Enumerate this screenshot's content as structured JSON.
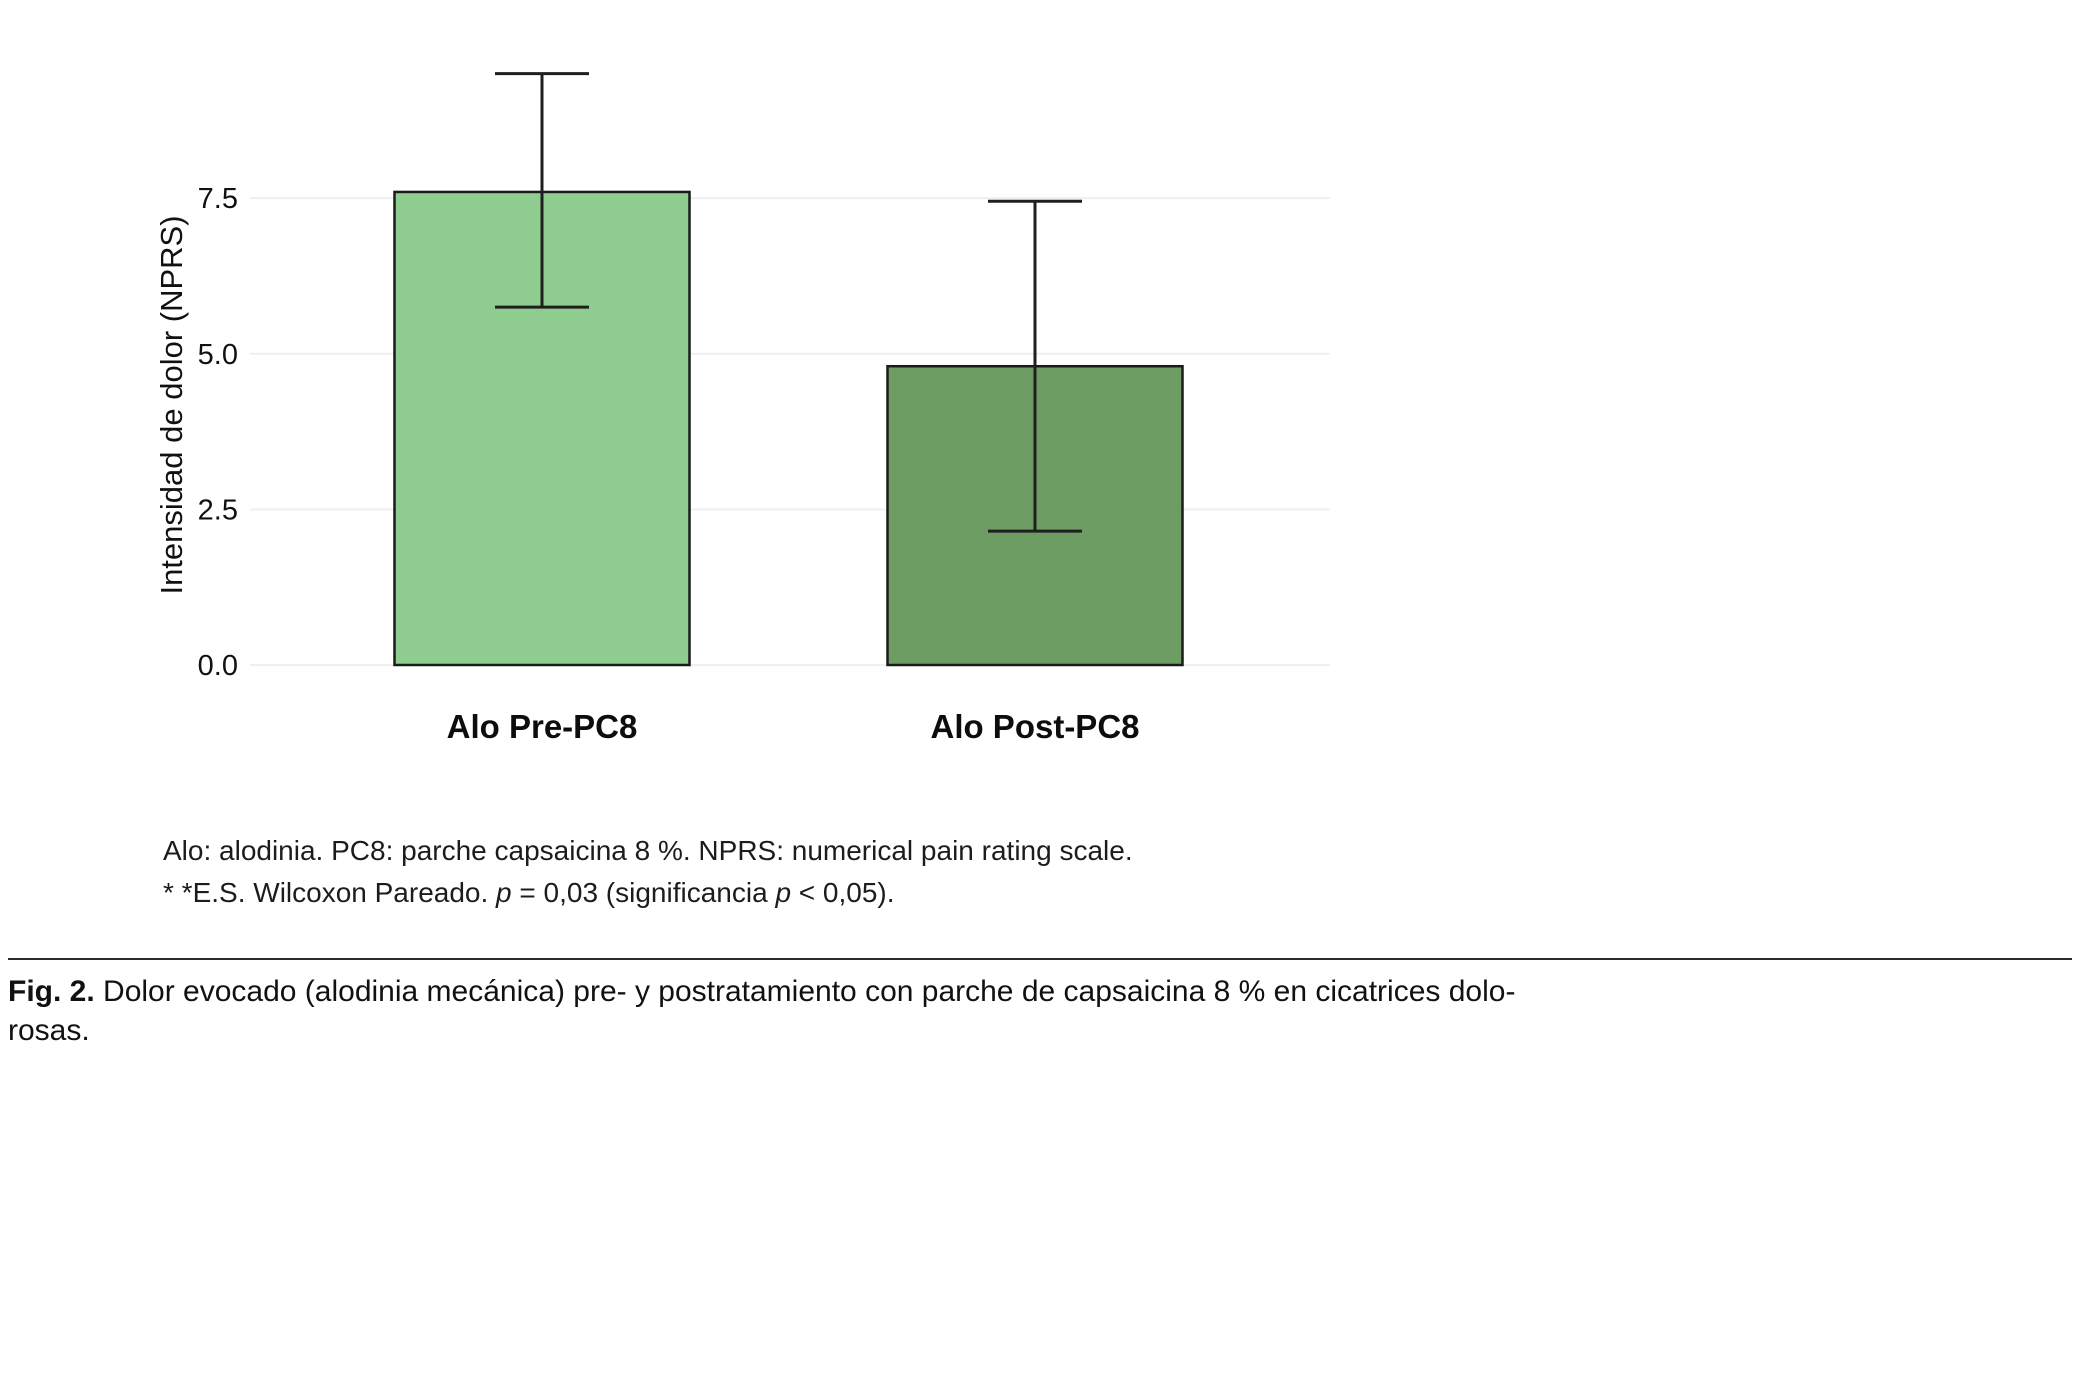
{
  "chart_data": {
    "type": "bar",
    "title": "",
    "categories": [
      "Alo Pre-PC8",
      "Alo Post-PC8"
    ],
    "values": [
      7.6,
      4.8
    ],
    "error_low": [
      5.75,
      2.15
    ],
    "error_high": [
      9.5,
      7.45
    ],
    "bar_colors": [
      "#8ecd8f",
      "#6e9d63"
    ],
    "bar_border_color": "#1a1a1a",
    "error_bar_color": "#1f1f1f",
    "xlabel": "",
    "ylabel": "Intensidad de dolor (NPRS)",
    "ytick_labels": [
      "0.0",
      "2.5",
      "5.0",
      "7.5"
    ],
    "ytick_values": [
      0,
      2.5,
      5,
      7.5
    ],
    "ylim": [
      0,
      9.8
    ],
    "grid": true,
    "grid_color": "#efefef",
    "legend": "none",
    "background": "#ffffff"
  },
  "footnotes": {
    "line1": "Alo: alodinia. PC8: parche capsaicina 8 %. NPRS: numerical pain rating scale.",
    "line2_segments": [
      {
        "text": "* *E.S. Wilcoxon Pareado. ",
        "italic": false
      },
      {
        "text": "p",
        "italic": true
      },
      {
        "text": " = 0,03 (significancia ",
        "italic": false
      },
      {
        "text": "p",
        "italic": true
      },
      {
        "text": " < 0,05).",
        "italic": false
      }
    ]
  },
  "caption": {
    "label": "Fig. 2.",
    "text": " Dolor evocado (alodinia mecánica) pre- y postratamiento con parche de capsaicina 8 % en cicatrices dolo­rosas."
  }
}
